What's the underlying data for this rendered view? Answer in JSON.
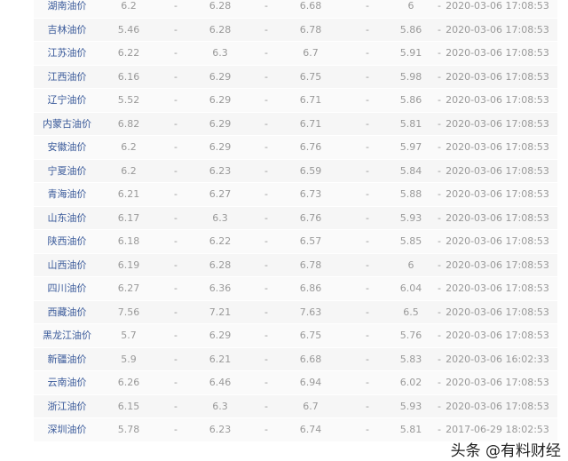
{
  "rows": [
    {
      "name": "湖南油价",
      "p89": "6.2",
      "p92": "6.28",
      "p95": "6.68",
      "p0": "6",
      "time": "2020-03-06 17:08:53"
    },
    {
      "name": "吉林油价",
      "p89": "5.46",
      "p92": "6.28",
      "p95": "6.78",
      "p0": "5.86",
      "time": "2020-03-06 17:08:53"
    },
    {
      "name": "江苏油价",
      "p89": "6.22",
      "p92": "6.3",
      "p95": "6.7",
      "p0": "5.91",
      "time": "2020-03-06 17:08:53"
    },
    {
      "name": "江西油价",
      "p89": "6.16",
      "p92": "6.29",
      "p95": "6.75",
      "p0": "5.98",
      "time": "2020-03-06 17:08:53"
    },
    {
      "name": "辽宁油价",
      "p89": "5.52",
      "p92": "6.29",
      "p95": "6.71",
      "p0": "5.86",
      "time": "2020-03-06 17:08:53"
    },
    {
      "name": "内蒙古油价",
      "p89": "6.82",
      "p92": "6.29",
      "p95": "6.71",
      "p0": "5.81",
      "time": "2020-03-06 17:08:53"
    },
    {
      "name": "安徽油价",
      "p89": "6.2",
      "p92": "6.29",
      "p95": "6.76",
      "p0": "5.97",
      "time": "2020-03-06 17:08:53"
    },
    {
      "name": "宁夏油价",
      "p89": "6.2",
      "p92": "6.23",
      "p95": "6.59",
      "p0": "5.84",
      "time": "2020-03-06 17:08:53"
    },
    {
      "name": "青海油价",
      "p89": "6.21",
      "p92": "6.27",
      "p95": "6.73",
      "p0": "5.88",
      "time": "2020-03-06 17:08:53"
    },
    {
      "name": "山东油价",
      "p89": "6.17",
      "p92": "6.3",
      "p95": "6.76",
      "p0": "5.93",
      "time": "2020-03-06 17:08:53"
    },
    {
      "name": "陕西油价",
      "p89": "6.18",
      "p92": "6.22",
      "p95": "6.57",
      "p0": "5.85",
      "time": "2020-03-06 17:08:53"
    },
    {
      "name": "山西油价",
      "p89": "6.19",
      "p92": "6.28",
      "p95": "6.78",
      "p0": "6",
      "time": "2020-03-06 17:08:53"
    },
    {
      "name": "四川油价",
      "p89": "6.27",
      "p92": "6.36",
      "p95": "6.86",
      "p0": "6.04",
      "time": "2020-03-06 17:08:53"
    },
    {
      "name": "西藏油价",
      "p89": "7.56",
      "p92": "7.21",
      "p95": "7.63",
      "p0": "6.5",
      "time": "2020-03-06 17:08:53"
    },
    {
      "name": "黑龙江油价",
      "p89": "5.7",
      "p92": "6.29",
      "p95": "6.75",
      "p0": "5.76",
      "time": "2020-03-06 17:08:53"
    },
    {
      "name": "新疆油价",
      "p89": "5.9",
      "p92": "6.21",
      "p95": "6.68",
      "p0": "5.83",
      "time": "2020-03-06 16:02:33"
    },
    {
      "name": "云南油价",
      "p89": "6.26",
      "p92": "6.46",
      "p95": "6.94",
      "p0": "6.02",
      "time": "2020-03-06 17:08:53"
    },
    {
      "name": "浙江油价",
      "p89": "6.15",
      "p92": "6.3",
      "p95": "6.7",
      "p0": "5.93",
      "time": "2020-03-06 17:08:53"
    },
    {
      "name": "深圳油价",
      "p89": "5.78",
      "p92": "6.23",
      "p95": "6.74",
      "p0": "5.81",
      "time": "2017-06-29 18:02:53"
    }
  ],
  "dash": "-",
  "watermark": "头条 @有料财经"
}
